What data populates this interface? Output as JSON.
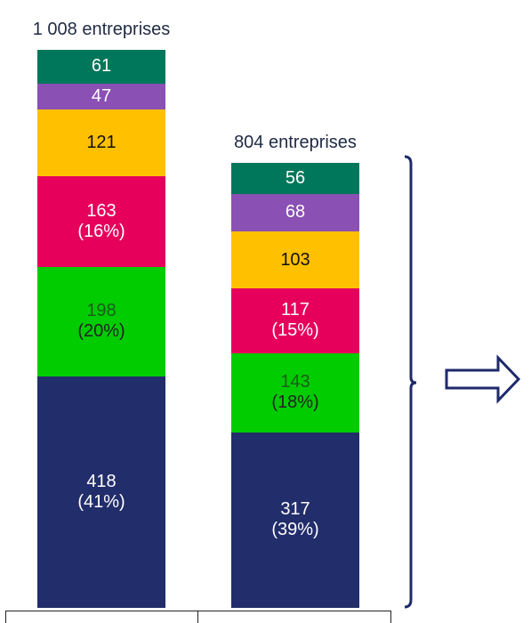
{
  "chart_data": {
    "type": "bar",
    "stacked": true,
    "categories": [
      "",
      ""
    ],
    "totals": [
      "1 008 entreprises",
      "804 entreprises"
    ],
    "series_colors": [
      "#222d6b",
      "#00cc00",
      "#e6005c",
      "#ffc000",
      "#8a50b4",
      "#00775a"
    ],
    "series": [
      {
        "values": [
          418,
          317
        ],
        "labels": [
          "418",
          "317"
        ],
        "pct": [
          "(41%)",
          "(39%)"
        ],
        "text_color": "#ffffff"
      },
      {
        "values": [
          198,
          143
        ],
        "labels": [
          "198",
          "143"
        ],
        "pct": [
          "(20%)",
          "(18%)"
        ],
        "text_color": "#1a5c1a",
        "pct_color": "#222222"
      },
      {
        "values": [
          163,
          117
        ],
        "labels": [
          "163",
          "117"
        ],
        "pct": [
          "(16%)",
          "(15%)"
        ],
        "text_color": "#ffffff"
      },
      {
        "values": [
          121,
          103
        ],
        "labels": [
          "121",
          "103"
        ],
        "pct": [
          "",
          ""
        ],
        "text_color": "#111111"
      },
      {
        "values": [
          47,
          68
        ],
        "labels": [
          "47",
          "68"
        ],
        "pct": [
          "",
          ""
        ],
        "text_color": "#ffffff"
      },
      {
        "values": [
          61,
          56
        ],
        "labels": [
          "61",
          "56"
        ],
        "pct": [
          "",
          ""
        ],
        "text_color": "#ffffff"
      }
    ]
  },
  "colors": {
    "bracket": "#1f2a6b",
    "arrow": "#1f2a6b"
  }
}
